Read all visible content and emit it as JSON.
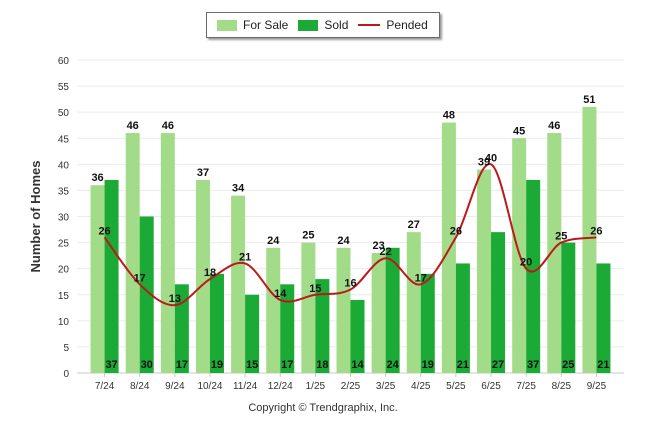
{
  "legend": {
    "for_sale": "For Sale",
    "sold": "Sold",
    "pended": "Pended"
  },
  "footer": "Copyright © Trendgraphix, Inc.",
  "colors": {
    "for_sale": "#a3dc89",
    "sold": "#1aaa35",
    "pended": "#bb1a1a",
    "grid": "#ececec"
  },
  "chart_data": {
    "type": "bar",
    "ylabel": "Number of Homes",
    "ylim": [
      0,
      60
    ],
    "yticks": [
      0,
      5,
      10,
      15,
      20,
      25,
      30,
      35,
      40,
      45,
      50,
      55,
      60
    ],
    "grid": true,
    "legend_position": "top-center",
    "categories": [
      "7/24",
      "8/24",
      "9/24",
      "10/24",
      "11/24",
      "12/24",
      "1/25",
      "2/25",
      "3/25",
      "4/25",
      "5/25",
      "6/25",
      "7/25",
      "8/25",
      "9/25"
    ],
    "series": [
      {
        "name": "For Sale",
        "type": "bar",
        "values": [
          36,
          46,
          46,
          37,
          34,
          24,
          25,
          24,
          23,
          27,
          48,
          39,
          45,
          46,
          51
        ]
      },
      {
        "name": "Sold",
        "type": "bar",
        "values": [
          37,
          30,
          17,
          19,
          15,
          17,
          18,
          14,
          24,
          19,
          21,
          27,
          37,
          25,
          21
        ]
      },
      {
        "name": "Pended",
        "type": "line",
        "values": [
          26,
          17,
          13,
          18,
          21,
          14,
          15,
          16,
          22,
          17,
          26,
          40,
          20,
          25,
          26
        ]
      }
    ]
  }
}
